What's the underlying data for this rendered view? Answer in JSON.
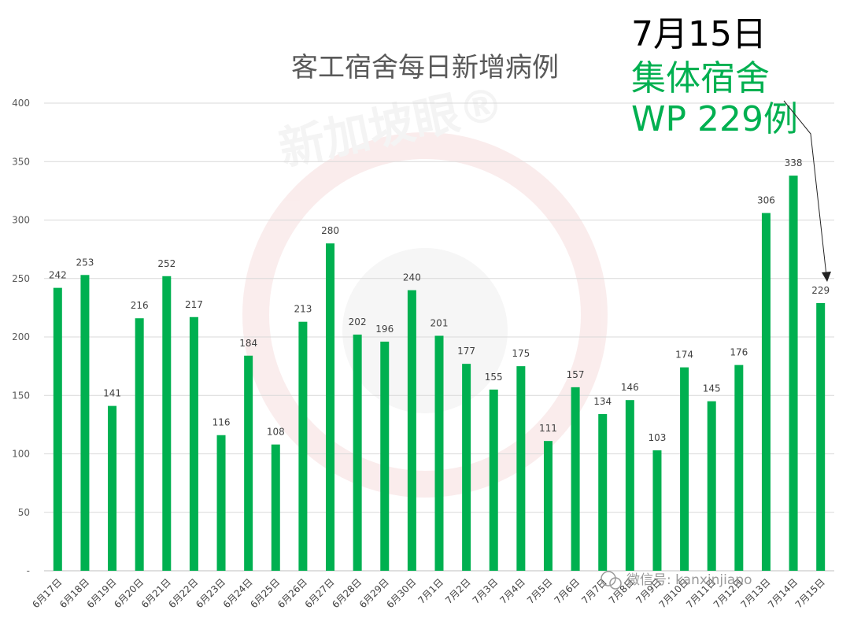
{
  "chart_data": {
    "type": "bar",
    "title": "客工宿舍每日新增病例",
    "xlabel": "",
    "ylabel": "",
    "ylim": [
      0,
      400
    ],
    "yticks": [
      "-",
      "50",
      "100",
      "150",
      "200",
      "250",
      "300",
      "350",
      "400"
    ],
    "grid": true,
    "bar_color": "#00b050",
    "categories": [
      "6月17日",
      "6月18日",
      "6月19日",
      "6月20日",
      "6月21日",
      "6月22日",
      "6月23日",
      "6月24日",
      "6月25日",
      "6月26日",
      "6月27日",
      "6月28日",
      "6月29日",
      "6月30日",
      "7月1日",
      "7月2日",
      "7月3日",
      "7月4日",
      "7月5日",
      "7月6日",
      "7月7日",
      "7月8日",
      "7月9日",
      "7月10日",
      "7月11日",
      "7月12日",
      "7月13日",
      "7月14日",
      "7月15日"
    ],
    "values": [
      242,
      253,
      141,
      216,
      252,
      217,
      116,
      184,
      108,
      213,
      280,
      202,
      196,
      240,
      201,
      177,
      155,
      175,
      111,
      157,
      134,
      146,
      103,
      174,
      145,
      176,
      306,
      338,
      229
    ]
  },
  "annotation": {
    "date": "7月15日",
    "line1": "集体宿舍",
    "line2": "WP 229例",
    "date_color": "#000000",
    "text_color": "#00b050"
  },
  "watermark": {
    "text": "新加坡眼®",
    "wechat": "微信号: kanxinjiapo"
  }
}
